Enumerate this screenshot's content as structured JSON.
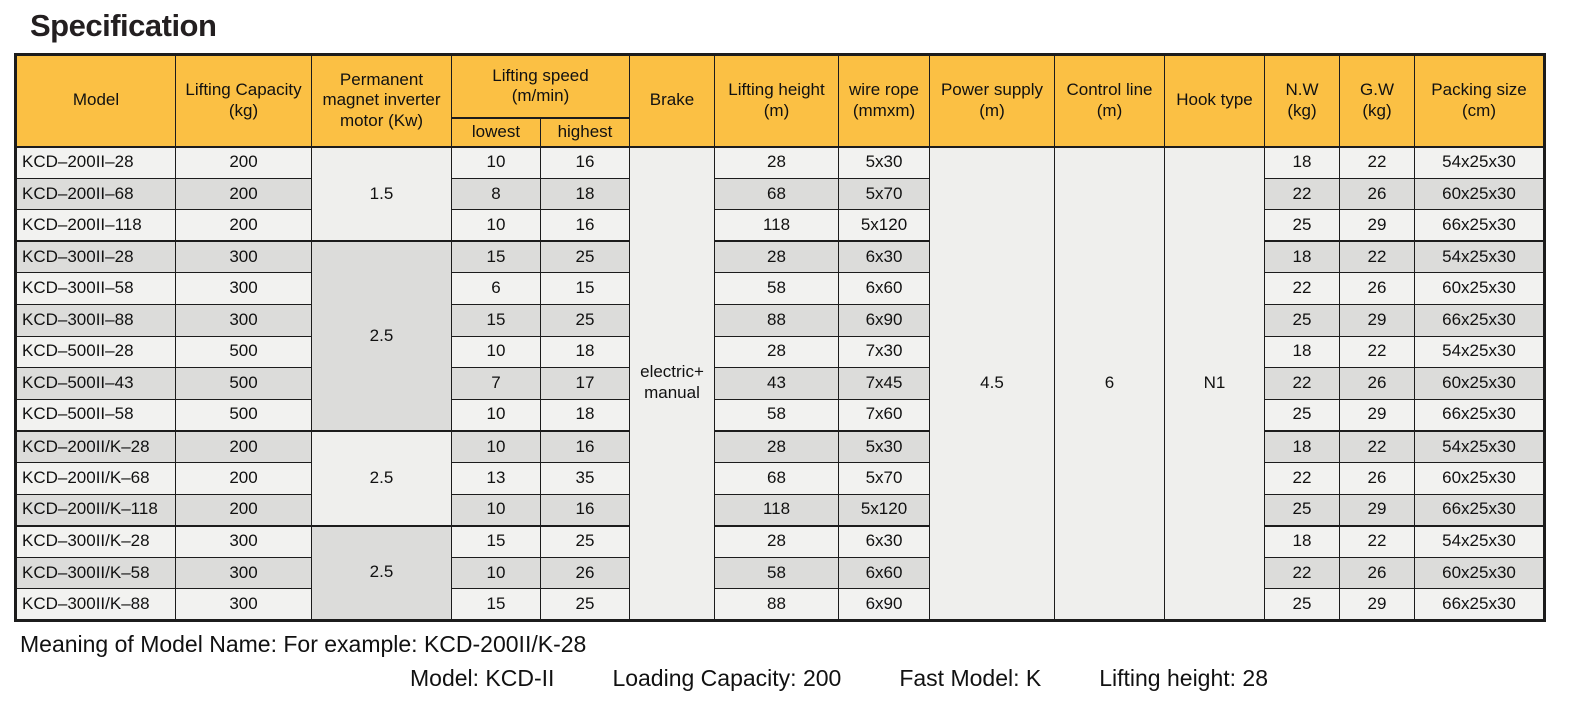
{
  "page": {
    "title": "Specification"
  },
  "colors": {
    "header_bg": "#fbc044",
    "row_light": "#f2f2f0",
    "row_dark": "#dcdcda",
    "merged_bg": "#efefed",
    "border": "#1c1c1c",
    "title": "#231f20"
  },
  "table": {
    "headers": {
      "model": "Model",
      "capacity": "Lifting Capacity\n(kg)",
      "motor": "Permanent\nmagnet inverter\nmotor (Kw)",
      "speed": "Lifting speed\n(m/min)",
      "speed_low": "lowest",
      "speed_high": "highest",
      "brake": "Brake",
      "height": "Lifting height\n(m)",
      "rope": "wire rope\n(mmxm)",
      "power": "Power supply\n(m)",
      "control": "Control line\n(m)",
      "hook": "Hook type",
      "nw": "N.W\n(kg)",
      "gw": "G.W\n(kg)",
      "packing": "Packing size\n(cm)"
    },
    "merged": {
      "brake": "electric+\nmanual",
      "power_supply": "4.5",
      "control_line": "6",
      "hook_type": "N1"
    },
    "motor_groups": [
      {
        "span": 3,
        "value": "1.5",
        "shade": "light"
      },
      {
        "span": 6,
        "value": "2.5",
        "shade": "dark"
      },
      {
        "span": 3,
        "value": "2.5",
        "shade": "light"
      },
      {
        "span": 3,
        "value": "2.5",
        "shade": "dark"
      }
    ],
    "rows": [
      {
        "model": "KCD–200II–28",
        "capacity": "200",
        "lowest": "10",
        "highest": "16",
        "height": "28",
        "rope": "5x30",
        "nw": "18",
        "gw": "22",
        "packing": "54x25x30"
      },
      {
        "model": "KCD–200II–68",
        "capacity": "200",
        "lowest": "8",
        "highest": "18",
        "height": "68",
        "rope": "5x70",
        "nw": "22",
        "gw": "26",
        "packing": "60x25x30"
      },
      {
        "model": "KCD–200II–118",
        "capacity": "200",
        "lowest": "10",
        "highest": "16",
        "height": "118",
        "rope": "5x120",
        "nw": "25",
        "gw": "29",
        "packing": "66x25x30"
      },
      {
        "model": "KCD–300II–28",
        "capacity": "300",
        "lowest": "15",
        "highest": "25",
        "height": "28",
        "rope": "6x30",
        "nw": "18",
        "gw": "22",
        "packing": "54x25x30"
      },
      {
        "model": "KCD–300II–58",
        "capacity": "300",
        "lowest": "6",
        "highest": "15",
        "height": "58",
        "rope": "6x60",
        "nw": "22",
        "gw": "26",
        "packing": "60x25x30"
      },
      {
        "model": "KCD–300II–88",
        "capacity": "300",
        "lowest": "15",
        "highest": "25",
        "height": "88",
        "rope": "6x90",
        "nw": "25",
        "gw": "29",
        "packing": "66x25x30"
      },
      {
        "model": "KCD–500II–28",
        "capacity": "500",
        "lowest": "10",
        "highest": "18",
        "height": "28",
        "rope": "7x30",
        "nw": "18",
        "gw": "22",
        "packing": "54x25x30"
      },
      {
        "model": "KCD–500II–43",
        "capacity": "500",
        "lowest": "7",
        "highest": "17",
        "height": "43",
        "rope": "7x45",
        "nw": "22",
        "gw": "26",
        "packing": "60x25x30"
      },
      {
        "model": "KCD–500II–58",
        "capacity": "500",
        "lowest": "10",
        "highest": "18",
        "height": "58",
        "rope": "7x60",
        "nw": "25",
        "gw": "29",
        "packing": "66x25x30"
      },
      {
        "model": "KCD–200II/K–28",
        "capacity": "200",
        "lowest": "10",
        "highest": "16",
        "height": "28",
        "rope": "5x30",
        "nw": "18",
        "gw": "22",
        "packing": "54x25x30"
      },
      {
        "model": "KCD–200II/K–68",
        "capacity": "200",
        "lowest": "13",
        "highest": "35",
        "height": "68",
        "rope": "5x70",
        "nw": "22",
        "gw": "26",
        "packing": "60x25x30"
      },
      {
        "model": "KCD–200II/K–118",
        "capacity": "200",
        "lowest": "10",
        "highest": "16",
        "height": "118",
        "rope": "5x120",
        "nw": "25",
        "gw": "29",
        "packing": "66x25x30"
      },
      {
        "model": "KCD–300II/K–28",
        "capacity": "300",
        "lowest": "15",
        "highest": "25",
        "height": "28",
        "rope": "6x30",
        "nw": "18",
        "gw": "22",
        "packing": "54x25x30"
      },
      {
        "model": "KCD–300II/K–58",
        "capacity": "300",
        "lowest": "10",
        "highest": "26",
        "height": "58",
        "rope": "6x60",
        "nw": "22",
        "gw": "26",
        "packing": "60x25x30"
      },
      {
        "model": "KCD–300II/K–88",
        "capacity": "300",
        "lowest": "15",
        "highest": "25",
        "height": "88",
        "rope": "6x90",
        "nw": "25",
        "gw": "29",
        "packing": "66x25x30"
      }
    ]
  },
  "footer": {
    "line1": "Meaning of Model Name: For example: KCD-200II/K-28",
    "items": [
      "Model: KCD-II",
      "Loading Capacity: 200",
      "Fast Model: K",
      "Lifting height: 28"
    ]
  }
}
